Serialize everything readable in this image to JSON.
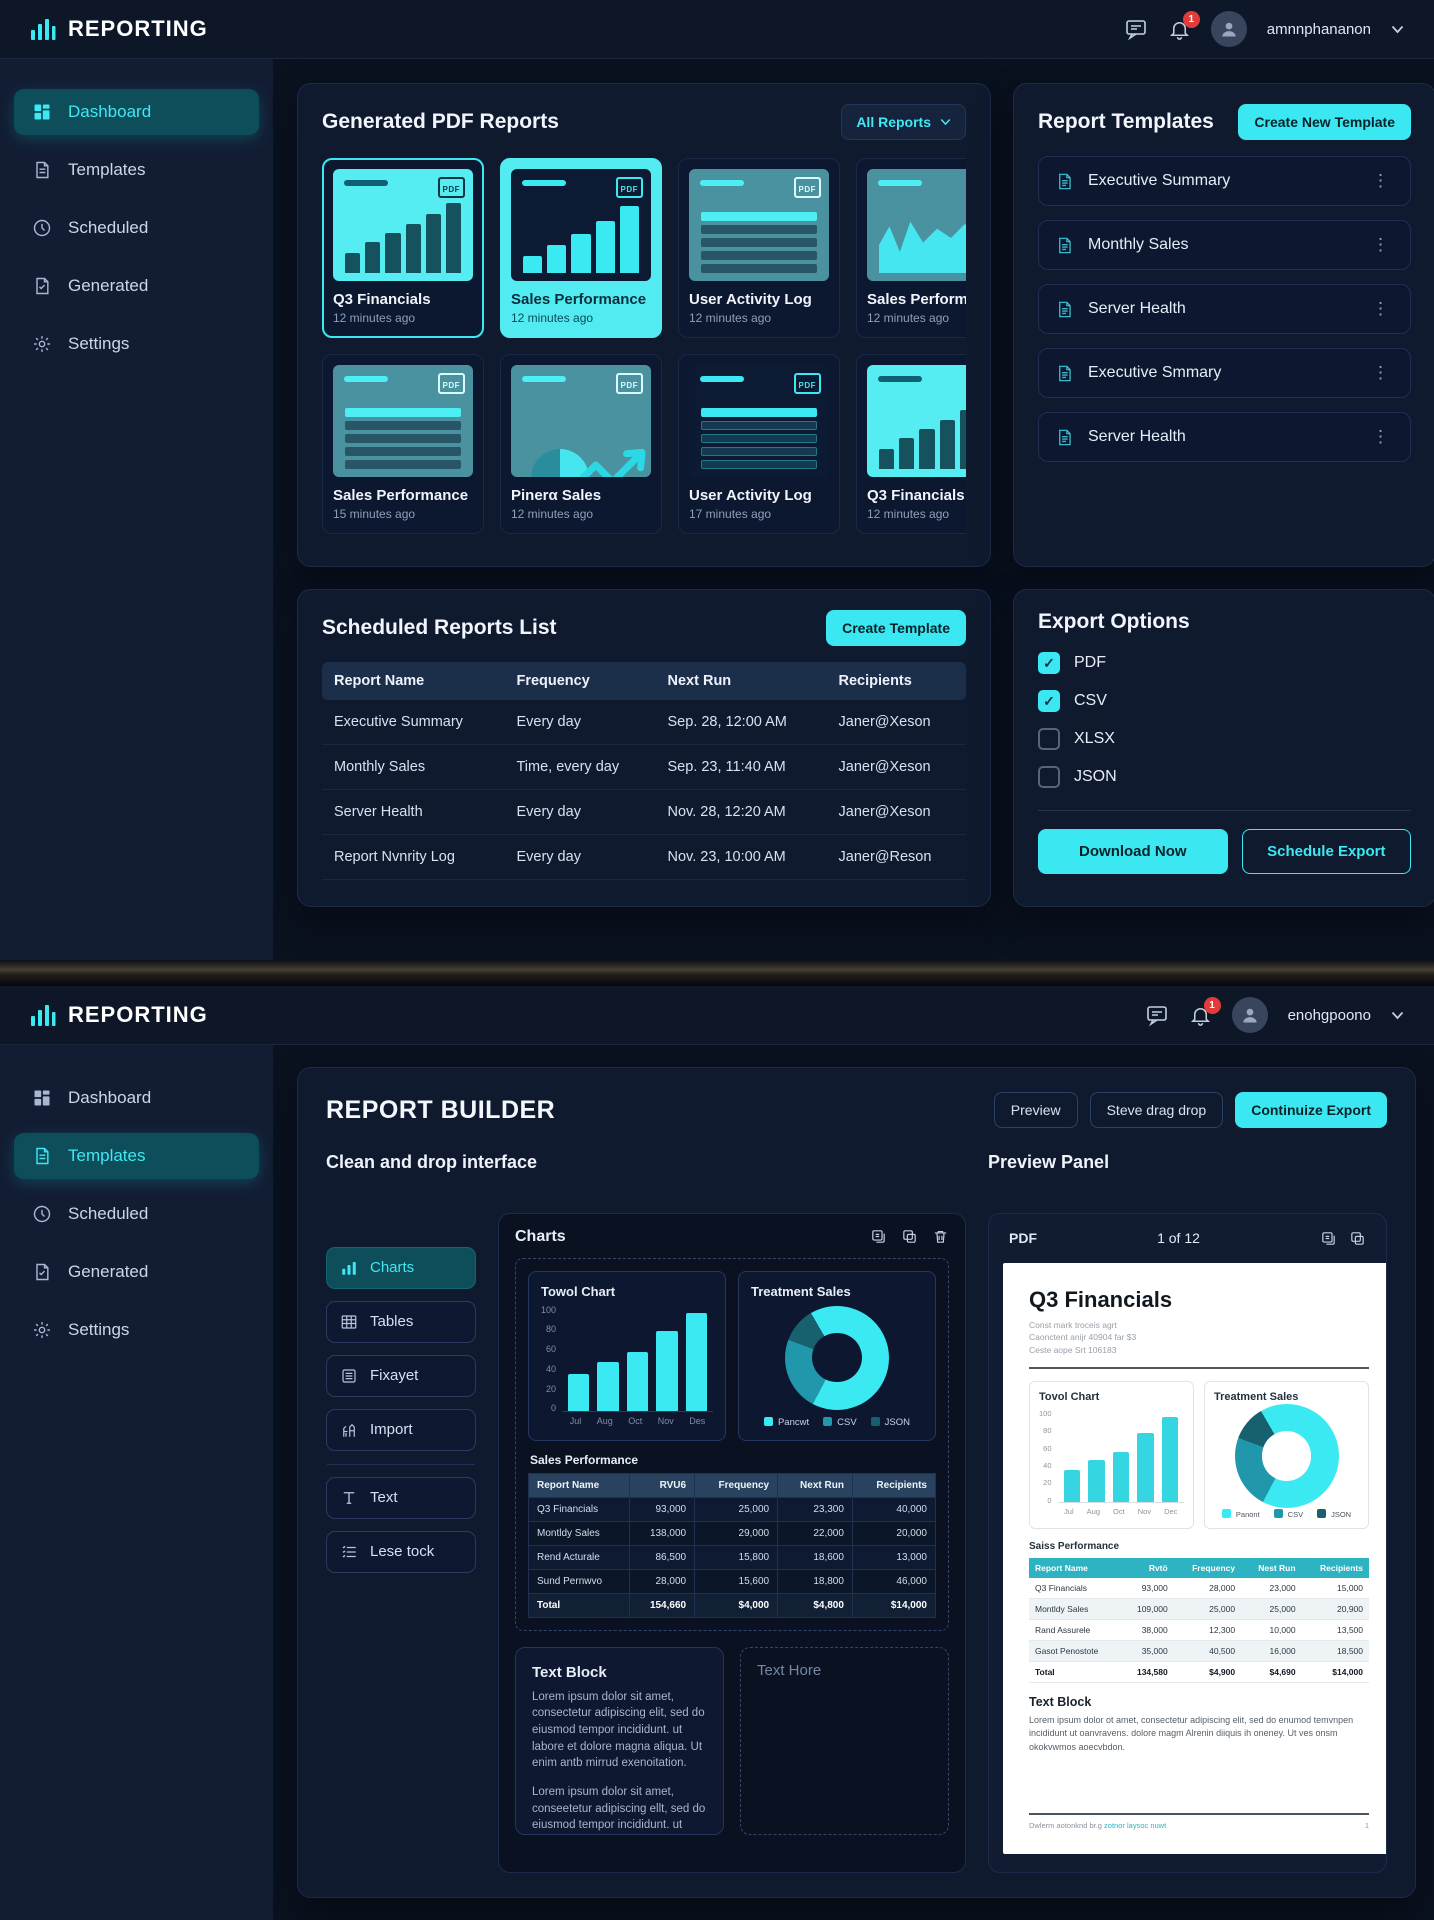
{
  "colors": {
    "accent": "#3BE8F2",
    "badge_red": "#E23B3B",
    "thumb_cyan": "#55ECF2",
    "thumb_teal": "#4A929F",
    "doc_table_header": "#2DB3C2",
    "donut_colors": [
      "#3BE9F2",
      "#2197AB",
      "#17606E"
    ]
  },
  "screen1": {
    "topbar": {
      "brand": "REPORTING",
      "notification_count": "1",
      "username": "amnnphananon"
    },
    "sidebar": [
      {
        "label": "Dashboard",
        "icon": "dashboard-icon",
        "active": true
      },
      {
        "label": "Templates",
        "icon": "templates-icon",
        "active": false
      },
      {
        "label": "Scheduled",
        "icon": "scheduled-icon",
        "active": false
      },
      {
        "label": "Generated",
        "icon": "generated-icon",
        "active": false
      },
      {
        "label": "Settings",
        "icon": "settings-icon",
        "active": false
      }
    ],
    "generated_reports": {
      "title": "Generated PDF Reports",
      "filter_label": "All Reports",
      "cards": [
        {
          "name": "Q3 Financials",
          "time": "12 minutes ago",
          "thumb": "bars-on-cyan",
          "style": "outlined"
        },
        {
          "name": "Sales Performance",
          "time": "12 minutes ago",
          "thumb": "bars-on-dark",
          "style": "filled"
        },
        {
          "name": "User Activity Log",
          "time": "12 minutes ago",
          "thumb": "table-on-teal",
          "style": "plain"
        },
        {
          "name": "Sales Performance",
          "time": "12 minutes ago",
          "thumb": "area-on-teal",
          "style": "plain"
        },
        {
          "name": "Sales Performance",
          "time": "15 minutes ago",
          "thumb": "table-on-teal",
          "style": "plain"
        },
        {
          "name": "Pinerα Sales",
          "time": "12 minutes ago",
          "thumb": "pie-on-teal",
          "style": "plain"
        },
        {
          "name": "User Activity Log",
          "time": "17 minutes ago",
          "thumb": "table-on-dark",
          "style": "plain"
        },
        {
          "name": "Q3 Financials",
          "time": "12 minutes ago",
          "thumb": "bars-on-cyan",
          "style": "plain"
        }
      ]
    },
    "report_templates": {
      "title": "Report Templates",
      "create_label": "Create New Template",
      "items": [
        "Executive Summary",
        "Monthly Sales",
        "Server Health",
        "Executive Smmary",
        "Server Health"
      ]
    },
    "scheduled_list": {
      "title": "Scheduled Reports List",
      "create_label": "Create Template",
      "columns": [
        "Report Name",
        "Frequency",
        "Next Run",
        "Recipients"
      ],
      "rows": [
        [
          "Executive Summary",
          "Every day",
          "Sep. 28, 12:00 AM",
          "Janer@Xeson"
        ],
        [
          "Monthly Sales",
          "Time, every day",
          "Sep. 23, 11:40 AM",
          "Janer@Xeson"
        ],
        [
          "Server Health",
          "Every day",
          "Nov. 28, 12:20 AM",
          "Janer@Xeson"
        ],
        [
          "Report Nvnrity Log",
          "Every day",
          "Nov. 23, 10:00 AM",
          "Janer@Reson"
        ]
      ]
    },
    "export_options": {
      "title": "Export Options",
      "formats": [
        {
          "label": "PDF",
          "checked": true
        },
        {
          "label": "CSV",
          "checked": true
        },
        {
          "label": "XLSX",
          "checked": false
        },
        {
          "label": "JSON",
          "checked": false
        }
      ],
      "download_label": "Download Now",
      "schedule_label": "Schedule Export"
    }
  },
  "screen2": {
    "topbar": {
      "brand": "REPORTING",
      "notification_count": "1",
      "username": "enohgpoono"
    },
    "sidebar": [
      {
        "label": "Dashboard",
        "icon": "dashboard-icon",
        "active": false
      },
      {
        "label": "Templates",
        "icon": "templates-icon",
        "active": true
      },
      {
        "label": "Scheduled",
        "icon": "scheduled-icon",
        "active": false
      },
      {
        "label": "Generated",
        "icon": "generated-icon",
        "active": false
      },
      {
        "label": "Settings",
        "icon": "settings-icon",
        "active": false
      }
    ],
    "builder": {
      "title": "REPORT BUILDER",
      "preview_label": "Preview",
      "drag_label": "Steve drag drop",
      "export_label": "Continuize Export",
      "left_title": "Clean and drop interface",
      "palette": [
        {
          "label": "Charts",
          "icon": "charts-icon",
          "active": true
        },
        {
          "label": "Tables",
          "icon": "tables-icon",
          "active": false
        },
        {
          "label": "Fixayet",
          "icon": "layout-icon",
          "active": false
        },
        {
          "label": "Import",
          "icon": "import-icon",
          "active": false
        },
        {
          "label": "Text",
          "icon": "text-icon",
          "active": false
        },
        {
          "label": "Lese tock",
          "icon": "list-icon",
          "active": false
        }
      ],
      "canvas": {
        "section_title": "Charts",
        "bar_chart": {
          "type": "bar",
          "title": "Towol Chart",
          "categories": [
            "Jul",
            "Aug",
            "Oct",
            "Nov",
            "Des"
          ],
          "values": [
            34,
            46,
            55,
            75,
            92
          ],
          "yticks": [
            0,
            20,
            40,
            60,
            80,
            100
          ],
          "ymax": 100
        },
        "donut_chart": {
          "type": "pie",
          "title": "Treatment Sales",
          "legend": [
            "Pancwt",
            "CSV",
            "JSON"
          ],
          "values": [
            66,
            23,
            11
          ]
        },
        "table": {
          "type": "table",
          "title": "Sales Performance",
          "columns": [
            "Report Name",
            "RVU6",
            "Frequency",
            "Next Run",
            "Recipients"
          ],
          "rows": [
            [
              "Q3 Financials",
              "93,000",
              "25,000",
              "23,300",
              "40,000"
            ],
            [
              "Montldy Sales",
              "138,000",
              "29,000",
              "22,000",
              "20,000"
            ],
            [
              "Rend Acturale",
              "86,500",
              "15,800",
              "18,600",
              "13,000"
            ],
            [
              "Sund Pernwvo",
              "28,000",
              "15,600",
              "18,800",
              "46,000"
            ]
          ],
          "total": [
            "Total",
            "154,660",
            "$4,000",
            "$4,800",
            "$14,000"
          ]
        },
        "text_block": {
          "title": "Text Block",
          "paragraphs": [
            "Lorem ipsum dolor sit amet, consectetur adipiscing elit, sed do eiusmod tempor incididunt. ut labore et dolore magna aliqua. Ut enim antb mirrud exenoitation.",
            "Lorem ipsum dolor sit amet, conseetetur adipiscing ellt, sed do eiusmod tempor incididunt. ut labore et dolore magna aliqua. Ut enim uil meltrud exenoitation."
          ]
        },
        "placeholder": "Text Hore"
      },
      "preview": {
        "right_title": "Preview Panel",
        "format_label": "PDF",
        "page_indicator": "1 of 12",
        "document": {
          "title": "Q3 Financials",
          "meta_lines": [
            "Const mark troceis agrt",
            "Caonctent anijr 40904 far $3",
            "Ceste aope Srt 106183"
          ],
          "bar_chart": {
            "type": "bar",
            "title": "Tovol Chart",
            "categories": [
              "Jul",
              "Aug",
              "Oct",
              "Nov",
              "Dec"
            ],
            "values": [
              34,
              45,
              54,
              74,
              91
            ],
            "yticks": [
              0,
              20,
              40,
              60,
              80,
              100
            ],
            "ymax": 100
          },
          "donut_chart": {
            "type": "pie",
            "title": "Treatment Sales",
            "legend": [
              "Panont",
              "CSV",
              "JSON"
            ],
            "values": [
              66,
              23,
              11
            ]
          },
          "table": {
            "type": "table",
            "title": "Saiss Performance",
            "columns": [
              "Report Name",
              "Rvtö",
              "Frequency",
              "Nest Run",
              "Recipients"
            ],
            "rows": [
              [
                "Q3 Financials",
                "93,000",
                "28,000",
                "23,000",
                "15,000"
              ],
              [
                "Montldy Sales",
                "109,000",
                "25,000",
                "25,000",
                "20,900"
              ],
              [
                "Rand Assurele",
                "38,000",
                "12,300",
                "10,000",
                "13,500"
              ],
              [
                "Gasot Penostote",
                "35,000",
                "40,500",
                "16,000",
                "18,500"
              ]
            ],
            "total": [
              "Total",
              "134,580",
              "$4,900",
              "$4,690",
              "$14,000"
            ]
          },
          "text_block": {
            "title": "Text Block",
            "paragraph": "Lorem ipsum dolor ot amet, consectetur adipiscing elit, sed do enumod temvnpen incididunt ut oanvravens. dolore magm Alrenin diiquis ih oneney. Ut ves onsm okokvwmos aoecvbdon."
          },
          "footer": {
            "left": "Dwlerm aotonknd br.g",
            "link": "zotnor laysoc nuwt",
            "page": "1"
          }
        }
      }
    }
  }
}
